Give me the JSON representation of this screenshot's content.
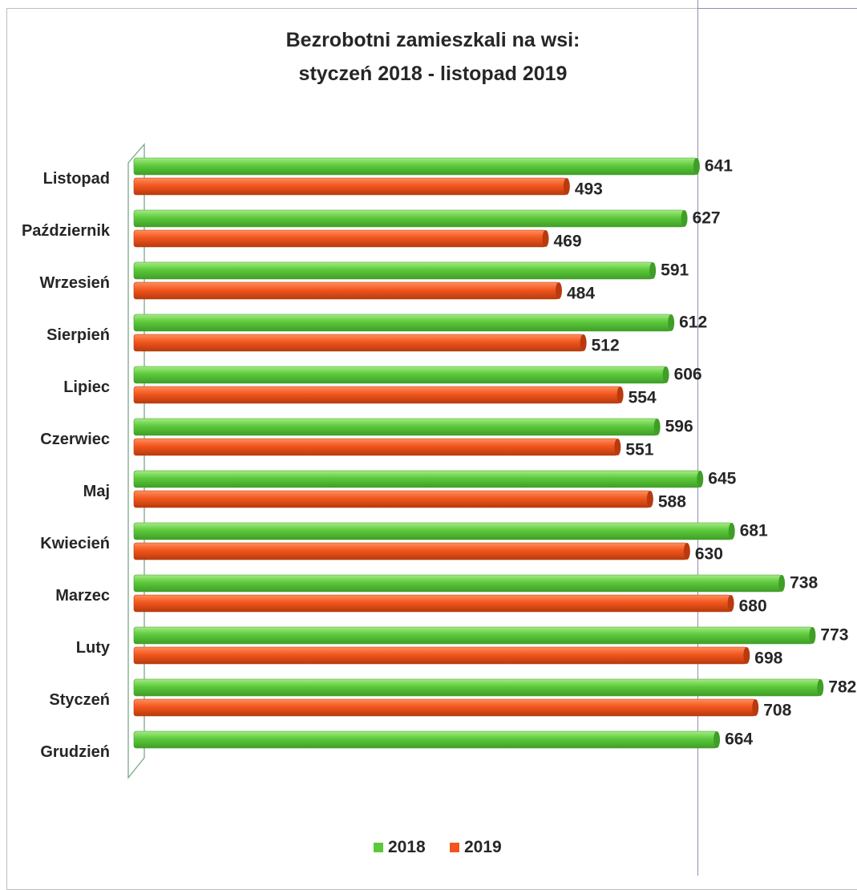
{
  "chart_data": {
    "type": "bar",
    "orientation": "horizontal",
    "title": [
      "Bezrobotni zamieszkali na wsi:",
      "styczeń 2018 - listopad 2019"
    ],
    "categories": [
      "Listopad",
      "Październik",
      "Wrzesień",
      "Sierpień",
      "Lipiec",
      "Czerwiec",
      "Maj",
      "Kwiecień",
      "Marzec",
      "Luty",
      "Styczeń",
      "Grudzień"
    ],
    "series": [
      {
        "name": "2018",
        "color": "#5cc93b",
        "values": [
          641,
          627,
          591,
          612,
          606,
          596,
          645,
          681,
          738,
          773,
          782,
          664
        ],
        "labels": [
          "641",
          "627",
          "591",
          "612",
          "606",
          "596",
          "645",
          "681",
          "738",
          "773",
          "782",
          "664"
        ]
      },
      {
        "name": "2019",
        "color": "#f2561d",
        "values": [
          493,
          469,
          484,
          512,
          554,
          551,
          588,
          630,
          680,
          698,
          708,
          null
        ],
        "labels": [
          "493",
          "469",
          "484",
          "512",
          "554",
          "551",
          "588",
          "630",
          "680",
          "698",
          "708",
          ""
        ]
      }
    ],
    "xlim": [
      0,
      800
    ],
    "grid": false,
    "legend": "bottom"
  }
}
